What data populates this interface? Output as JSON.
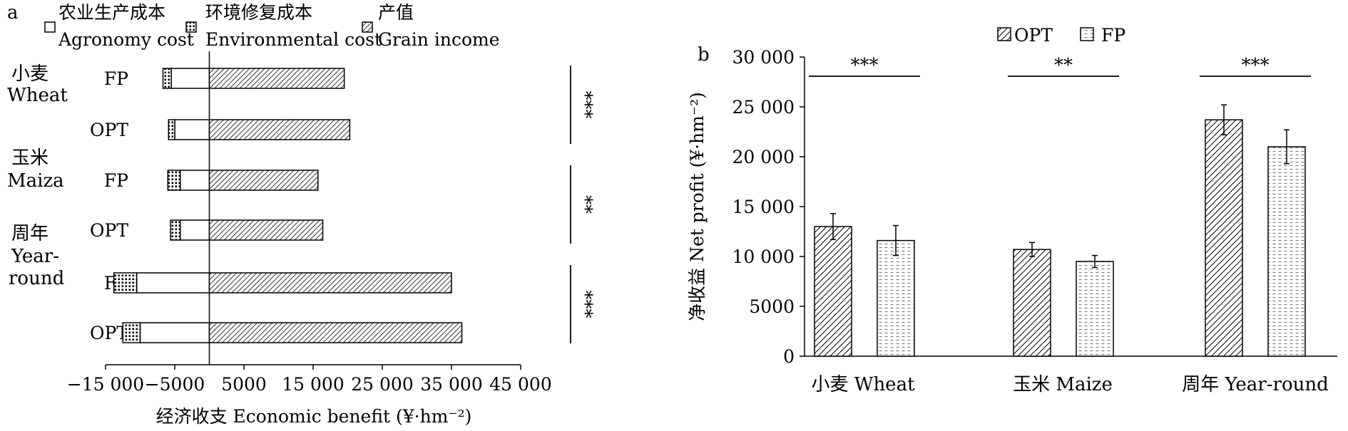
{
  "chart_data": [
    {
      "panel": "a",
      "type": "bar",
      "orientation": "horizontal",
      "stacked": true,
      "xlabel": "经济收支 Economic benefit (¥·hm⁻²)",
      "xlim": [
        -15000,
        45000
      ],
      "xticks": [
        -15000,
        -5000,
        5000,
        15000,
        25000,
        35000,
        45000
      ],
      "xtick_labels": [
        "−15 000",
        "−5000",
        "5000",
        "15 000",
        "25 000",
        "35 000",
        "45 000"
      ],
      "legend": [
        {
          "cn": "农业生产成本",
          "en": "Agronomy cost",
          "pattern": "white"
        },
        {
          "cn": "环境修复成本",
          "en": "Environmental cost",
          "pattern": "dots"
        },
        {
          "cn": "产值",
          "en": "Grain income",
          "pattern": "hatch"
        }
      ],
      "groups": [
        {
          "cn": "小麦",
          "en": "Wheat",
          "sig": "***"
        },
        {
          "cn": "玉米",
          "en": "Maiza",
          "sig": "**"
        },
        {
          "cn": "周年",
          "en": "Year-round",
          "en_lines": [
            "Year-",
            "round"
          ],
          "sig": "***"
        }
      ],
      "rows": [
        {
          "group": 0,
          "label": "FP",
          "agronomy_cost": -5500,
          "environmental_cost": -1200,
          "grain_income": 19500
        },
        {
          "group": 0,
          "label": "OPT",
          "agronomy_cost": -5000,
          "environmental_cost": -900,
          "grain_income": 20300
        },
        {
          "group": 1,
          "label": "FP",
          "agronomy_cost": -4200,
          "environmental_cost": -1800,
          "grain_income": 15700
        },
        {
          "group": 1,
          "label": "OPT",
          "agronomy_cost": -4200,
          "environmental_cost": -1400,
          "grain_income": 16400
        },
        {
          "group": 2,
          "label": "FP",
          "agronomy_cost": -10500,
          "environmental_cost": -3300,
          "grain_income": 35000
        },
        {
          "group": 2,
          "label": "OPT",
          "agronomy_cost": -10000,
          "environmental_cost": -2500,
          "grain_income": 36500
        }
      ]
    },
    {
      "panel": "b",
      "type": "bar",
      "ylabel": "净收益 Net profit (¥·hm⁻²)",
      "ylim": [
        0,
        30000
      ],
      "yticks": [
        0,
        5000,
        10000,
        15000,
        20000,
        25000,
        30000
      ],
      "ytick_labels": [
        "0",
        "5000",
        "10 000",
        "15 000",
        "20 000",
        "25 000",
        "30 000"
      ],
      "categories": [
        "小麦 Wheat",
        "玉米 Maize",
        "周年 Year-round"
      ],
      "significance": [
        "***",
        "**",
        "***"
      ],
      "series": [
        {
          "name": "OPT",
          "pattern": "hatch",
          "values": [
            13000,
            10700,
            23700
          ],
          "errors": [
            1300,
            700,
            1500
          ]
        },
        {
          "name": "FP",
          "pattern": "dash",
          "values": [
            11600,
            9500,
            21000
          ],
          "errors": [
            1500,
            600,
            1700
          ]
        }
      ]
    }
  ]
}
